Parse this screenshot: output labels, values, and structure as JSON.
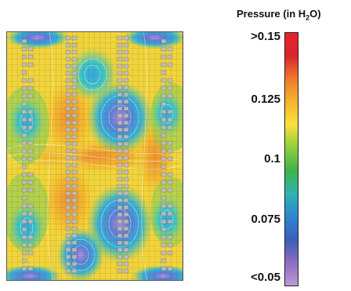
{
  "legend": {
    "title_main": "Pressure (in H",
    "title_sub": "2",
    "title_end": "O)",
    "ticks": [
      ">0.15",
      "0.125",
      "0.1",
      "0.075",
      "<0.05"
    ],
    "gradient_colors": [
      "#e8232a",
      "#d8262c",
      "#f07a2a",
      "#f6b52e",
      "#f8e23a",
      "#8fce3e",
      "#3cb44a",
      "#2fb3b0",
      "#2c86d0",
      "#3a5fb8",
      "#8d6cc0",
      "#b89ad8"
    ]
  },
  "map": {
    "tile_color": "#bdbdbd",
    "grid_color": "#444444"
  }
}
